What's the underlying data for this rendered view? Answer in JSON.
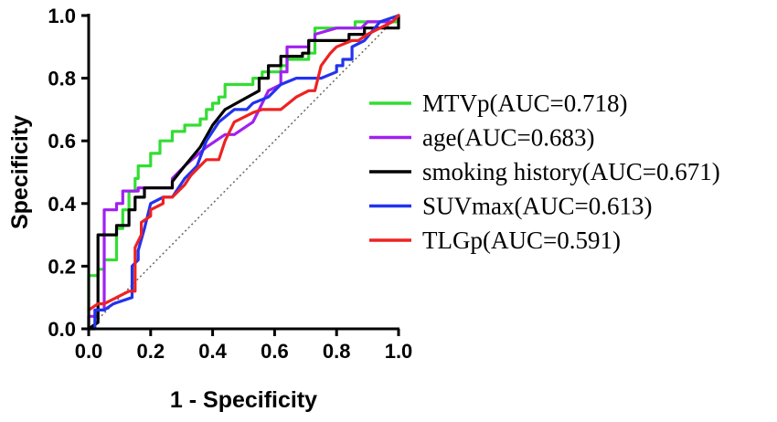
{
  "chart_data": {
    "type": "line",
    "title": "",
    "xlabel": "1 - Specificity",
    "ylabel": "Specificity",
    "xlim": [
      0,
      1
    ],
    "ylim": [
      0,
      1
    ],
    "xticks": [
      "0.0",
      "0.2",
      "0.4",
      "0.6",
      "0.8",
      "1.0"
    ],
    "yticks": [
      "0.0",
      "0.2",
      "0.4",
      "0.6",
      "0.8",
      "1.0"
    ],
    "legend_position": "right",
    "series": [
      {
        "name": "MTVp(AUC=0.718)",
        "color": "#33dd33",
        "points": [
          [
            0,
            0
          ],
          [
            0,
            0.17
          ],
          [
            0.03,
            0.17
          ],
          [
            0.03,
            0.19
          ],
          [
            0.05,
            0.19
          ],
          [
            0.05,
            0.22
          ],
          [
            0.09,
            0.22
          ],
          [
            0.09,
            0.32
          ],
          [
            0.11,
            0.32
          ],
          [
            0.11,
            0.38
          ],
          [
            0.13,
            0.38
          ],
          [
            0.13,
            0.44
          ],
          [
            0.15,
            0.44
          ],
          [
            0.15,
            0.48
          ],
          [
            0.16,
            0.48
          ],
          [
            0.16,
            0.52
          ],
          [
            0.2,
            0.52
          ],
          [
            0.2,
            0.56
          ],
          [
            0.23,
            0.56
          ],
          [
            0.23,
            0.6
          ],
          [
            0.27,
            0.6
          ],
          [
            0.27,
            0.63
          ],
          [
            0.31,
            0.63
          ],
          [
            0.31,
            0.65
          ],
          [
            0.36,
            0.65
          ],
          [
            0.36,
            0.67
          ],
          [
            0.38,
            0.67
          ],
          [
            0.38,
            0.7
          ],
          [
            0.4,
            0.7
          ],
          [
            0.4,
            0.72
          ],
          [
            0.42,
            0.72
          ],
          [
            0.42,
            0.74
          ],
          [
            0.44,
            0.74
          ],
          [
            0.44,
            0.78
          ],
          [
            0.53,
            0.78
          ],
          [
            0.53,
            0.8
          ],
          [
            0.56,
            0.8
          ],
          [
            0.56,
            0.82
          ],
          [
            0.62,
            0.82
          ],
          [
            0.62,
            0.84
          ],
          [
            0.64,
            0.84
          ],
          [
            0.64,
            0.86
          ],
          [
            0.71,
            0.86
          ],
          [
            0.71,
            0.88
          ],
          [
            0.73,
            0.88
          ],
          [
            0.73,
            0.96
          ],
          [
            0.86,
            0.96
          ],
          [
            0.86,
            0.98
          ],
          [
            1,
            0.98
          ],
          [
            1,
            1
          ]
        ]
      },
      {
        "name": "age(AUC=0.683)",
        "color": "#a020f0",
        "points": [
          [
            0,
            0
          ],
          [
            0,
            0.04
          ],
          [
            0.03,
            0.04
          ],
          [
            0.03,
            0.06
          ],
          [
            0.05,
            0.06
          ],
          [
            0.05,
            0.38
          ],
          [
            0.09,
            0.38
          ],
          [
            0.09,
            0.4
          ],
          [
            0.11,
            0.4
          ],
          [
            0.11,
            0.44
          ],
          [
            0.16,
            0.44
          ],
          [
            0.16,
            0.45
          ],
          [
            0.27,
            0.45
          ],
          [
            0.27,
            0.48
          ],
          [
            0.31,
            0.52
          ],
          [
            0.38,
            0.58
          ],
          [
            0.44,
            0.62
          ],
          [
            0.47,
            0.62
          ],
          [
            0.53,
            0.66
          ],
          [
            0.55,
            0.7
          ],
          [
            0.58,
            0.76
          ],
          [
            0.62,
            0.78
          ],
          [
            0.62,
            0.82
          ],
          [
            0.64,
            0.82
          ],
          [
            0.64,
            0.9
          ],
          [
            0.71,
            0.9
          ],
          [
            0.71,
            0.92
          ],
          [
            0.73,
            0.92
          ],
          [
            0.73,
            0.94
          ],
          [
            0.8,
            0.96
          ],
          [
            0.88,
            0.96
          ],
          [
            0.9,
            0.98
          ],
          [
            0.98,
            0.98
          ],
          [
            1,
            1
          ]
        ]
      },
      {
        "name": "smoking history(AUC=0.671)",
        "color": "#000000",
        "points": [
          [
            0,
            0
          ],
          [
            0.03,
            0.02
          ],
          [
            0.03,
            0.3
          ],
          [
            0.09,
            0.3
          ],
          [
            0.09,
            0.33
          ],
          [
            0.13,
            0.33
          ],
          [
            0.13,
            0.38
          ],
          [
            0.15,
            0.38
          ],
          [
            0.15,
            0.42
          ],
          [
            0.18,
            0.42
          ],
          [
            0.18,
            0.45
          ],
          [
            0.27,
            0.45
          ],
          [
            0.27,
            0.47
          ],
          [
            0.31,
            0.52
          ],
          [
            0.36,
            0.58
          ],
          [
            0.4,
            0.65
          ],
          [
            0.44,
            0.7
          ],
          [
            0.55,
            0.76
          ],
          [
            0.55,
            0.8
          ],
          [
            0.58,
            0.8
          ],
          [
            0.58,
            0.84
          ],
          [
            0.62,
            0.84
          ],
          [
            0.62,
            0.87
          ],
          [
            0.69,
            0.87
          ],
          [
            0.69,
            0.88
          ],
          [
            0.71,
            0.88
          ],
          [
            0.71,
            0.92
          ],
          [
            0.84,
            0.92
          ],
          [
            0.84,
            0.94
          ],
          [
            0.89,
            0.94
          ],
          [
            0.89,
            0.96
          ],
          [
            1,
            0.96
          ],
          [
            1,
            1
          ]
        ]
      },
      {
        "name": "SUVmax(AUC=0.613)",
        "color": "#2233ee",
        "points": [
          [
            0,
            0
          ],
          [
            0.02,
            0
          ],
          [
            0.02,
            0.06
          ],
          [
            0.05,
            0.06
          ],
          [
            0.08,
            0.08
          ],
          [
            0.14,
            0.1
          ],
          [
            0.14,
            0.2
          ],
          [
            0.16,
            0.22
          ],
          [
            0.16,
            0.25
          ],
          [
            0.18,
            0.32
          ],
          [
            0.2,
            0.4
          ],
          [
            0.24,
            0.42
          ],
          [
            0.27,
            0.42
          ],
          [
            0.31,
            0.48
          ],
          [
            0.35,
            0.52
          ],
          [
            0.38,
            0.6
          ],
          [
            0.42,
            0.66
          ],
          [
            0.47,
            0.7
          ],
          [
            0.51,
            0.7
          ],
          [
            0.53,
            0.72
          ],
          [
            0.58,
            0.74
          ],
          [
            0.62,
            0.78
          ],
          [
            0.67,
            0.8
          ],
          [
            0.75,
            0.8
          ],
          [
            0.8,
            0.82
          ],
          [
            0.8,
            0.84
          ],
          [
            0.82,
            0.84
          ],
          [
            0.82,
            0.86
          ],
          [
            0.85,
            0.86
          ],
          [
            0.85,
            0.9
          ],
          [
            0.89,
            0.92
          ],
          [
            0.94,
            0.98
          ],
          [
            1,
            1
          ]
        ]
      },
      {
        "name": "TLGp(AUC=0.591)",
        "color": "#ee2222",
        "points": [
          [
            0,
            0.06
          ],
          [
            0.03,
            0.08
          ],
          [
            0.05,
            0.08
          ],
          [
            0.09,
            0.1
          ],
          [
            0.13,
            0.12
          ],
          [
            0.15,
            0.12
          ],
          [
            0.15,
            0.26
          ],
          [
            0.17,
            0.3
          ],
          [
            0.17,
            0.34
          ],
          [
            0.2,
            0.36
          ],
          [
            0.2,
            0.38
          ],
          [
            0.24,
            0.4
          ],
          [
            0.24,
            0.42
          ],
          [
            0.27,
            0.42
          ],
          [
            0.31,
            0.46
          ],
          [
            0.33,
            0.49
          ],
          [
            0.36,
            0.52
          ],
          [
            0.38,
            0.54
          ],
          [
            0.42,
            0.54
          ],
          [
            0.44,
            0.6
          ],
          [
            0.47,
            0.66
          ],
          [
            0.53,
            0.69
          ],
          [
            0.56,
            0.7
          ],
          [
            0.62,
            0.7
          ],
          [
            0.67,
            0.74
          ],
          [
            0.71,
            0.76
          ],
          [
            0.73,
            0.76
          ],
          [
            0.75,
            0.84
          ],
          [
            0.78,
            0.88
          ],
          [
            0.8,
            0.9
          ],
          [
            0.85,
            0.92
          ],
          [
            0.87,
            0.92
          ],
          [
            0.9,
            0.94
          ],
          [
            0.94,
            0.96
          ],
          [
            0.98,
            0.98
          ],
          [
            1,
            1
          ]
        ]
      }
    ],
    "reference_line": {
      "from": [
        0,
        0
      ],
      "to": [
        1,
        1
      ],
      "style": "dotted",
      "color": "#666666"
    }
  }
}
